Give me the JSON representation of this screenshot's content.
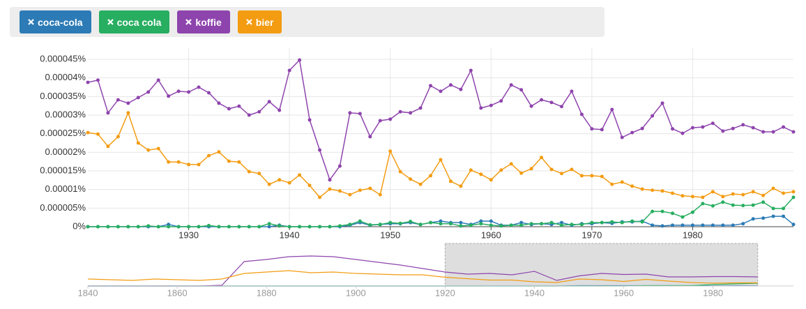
{
  "chart_data": [
    {
      "type": "line",
      "x": [
        1920,
        1921,
        1922,
        1923,
        1924,
        1925,
        1926,
        1927,
        1928,
        1929,
        1930,
        1931,
        1932,
        1933,
        1934,
        1935,
        1936,
        1937,
        1938,
        1939,
        1940,
        1941,
        1942,
        1943,
        1944,
        1945,
        1946,
        1947,
        1948,
        1949,
        1950,
        1951,
        1952,
        1953,
        1954,
        1955,
        1956,
        1957,
        1958,
        1959,
        1960,
        1961,
        1962,
        1963,
        1964,
        1965,
        1966,
        1967,
        1968,
        1969,
        1970,
        1971,
        1972,
        1973,
        1974,
        1975,
        1976,
        1977,
        1978,
        1979,
        1980,
        1981,
        1982,
        1983,
        1984,
        1985,
        1986,
        1987,
        1988,
        1989,
        1990
      ],
      "xlim": [
        1920,
        1990
      ],
      "xticks": [
        1930,
        1940,
        1950,
        1960,
        1970,
        1980
      ],
      "ylim": [
        0,
        4.8e-05
      ],
      "yticks": [
        {
          "value": 0,
          "label": "0%"
        },
        {
          "value": 5e-06,
          "label": "0.000005%"
        },
        {
          "value": 1e-05,
          "label": "0.00001%"
        },
        {
          "value": 1.5e-05,
          "label": "0.000015%"
        },
        {
          "value": 2e-05,
          "label": "0.00002%"
        },
        {
          "value": 2.5e-05,
          "label": "0.000025%"
        },
        {
          "value": 3e-05,
          "label": "0.00003%"
        },
        {
          "value": 3.5e-05,
          "label": "0.000035%"
        },
        {
          "value": 4e-05,
          "label": "0.00004%"
        },
        {
          "value": 4.5e-05,
          "label": "0.000045%"
        }
      ],
      "grid": true,
      "series": [
        {
          "name": "coca-cola",
          "color": "#2c7bb6",
          "values": [
            0,
            0,
            0,
            0,
            0,
            0,
            0,
            0,
            6e-07,
            0,
            0,
            0,
            0,
            0,
            0,
            0,
            0,
            0,
            0,
            4e-07,
            0,
            0,
            0,
            0,
            0,
            0,
            4e-07,
            1.1e-06,
            4e-07,
            6e-07,
            8e-07,
            8e-07,
            1.1e-06,
            6e-07,
            1.1e-06,
            1.5e-06,
            1.1e-06,
            1.1e-06,
            6e-07,
            1.5e-06,
            1.5e-06,
            4e-07,
            4e-07,
            1.1e-06,
            6e-07,
            8e-07,
            6e-07,
            1.1e-06,
            4e-07,
            8e-07,
            8e-07,
            1.1e-06,
            9e-07,
            1.3e-06,
            1.3e-06,
            1.5e-06,
            4e-07,
            2e-07,
            4e-07,
            4e-07,
            4e-07,
            4e-07,
            4e-07,
            4e-07,
            4e-07,
            8e-07,
            2.1e-06,
            2.3e-06,
            2.8e-06,
            2.8e-06,
            6e-07
          ]
        },
        {
          "name": "coca cola",
          "color": "#27ae60",
          "values": [
            0,
            0,
            0,
            0,
            0,
            0,
            2e-07,
            0,
            0,
            0,
            0,
            0,
            3e-07,
            0,
            0,
            0,
            0,
            0,
            8e-07,
            2e-07,
            0,
            0,
            0,
            0,
            0,
            2e-07,
            6e-07,
            1.5e-06,
            5e-07,
            6e-07,
            1.1e-06,
            9e-07,
            1.4e-06,
            6e-07,
            1.1e-06,
            8e-07,
            8e-07,
            2e-07,
            4e-07,
            8e-07,
            4e-07,
            2e-07,
            4e-07,
            4e-07,
            8e-07,
            8e-07,
            1.1e-06,
            4e-07,
            6e-07,
            6e-07,
            1.1e-06,
            1.1e-06,
            1.3e-06,
            1.1e-06,
            1.5e-06,
            1.3e-06,
            4.1e-06,
            4.1e-06,
            3.6e-06,
            2.6e-06,
            3.9e-06,
            6.2e-06,
            5.6e-06,
            6.6e-06,
            5.8e-06,
            5.7e-06,
            5.8e-06,
            6.6e-06,
            4.9e-06,
            4.9e-06,
            7.9e-06
          ]
        },
        {
          "name": "koffie",
          "color": "#8e44ad",
          "values": [
            3.88e-05,
            3.94e-05,
            3.06e-05,
            3.41e-05,
            3.32e-05,
            3.47e-05,
            3.62e-05,
            3.94e-05,
            3.51e-05,
            3.64e-05,
            3.62e-05,
            3.75e-05,
            3.6e-05,
            3.32e-05,
            3.17e-05,
            3.24e-05,
            3e-05,
            3.09e-05,
            3.36e-05,
            3.13e-05,
            4.2e-05,
            4.48e-05,
            2.87e-05,
            2.06e-05,
            1.26e-05,
            1.63e-05,
            3.06e-05,
            3.04e-05,
            2.42e-05,
            2.85e-05,
            2.89e-05,
            3.09e-05,
            3.06e-05,
            3.19e-05,
            3.79e-05,
            3.64e-05,
            3.81e-05,
            3.69e-05,
            4.2e-05,
            3.19e-05,
            3.26e-05,
            3.38e-05,
            3.81e-05,
            3.68e-05,
            3.24e-05,
            3.41e-05,
            3.34e-05,
            3.23e-05,
            3.64e-05,
            3.02e-05,
            2.63e-05,
            2.61e-05,
            3.15e-05,
            2.4e-05,
            2.53e-05,
            2.64e-05,
            2.98e-05,
            3.32e-05,
            2.63e-05,
            2.51e-05,
            2.66e-05,
            2.68e-05,
            2.78e-05,
            2.57e-05,
            2.64e-05,
            2.74e-05,
            2.66e-05,
            2.55e-05,
            2.55e-05,
            2.68e-05,
            2.55e-05
          ]
        },
        {
          "name": "bier",
          "color": "#f39c12",
          "values": [
            2.53e-05,
            2.49e-05,
            2.16e-05,
            2.42e-05,
            3.06e-05,
            2.25e-05,
            2.06e-05,
            2.1e-05,
            1.74e-05,
            1.74e-05,
            1.67e-05,
            1.67e-05,
            1.91e-05,
            2.01e-05,
            1.76e-05,
            1.74e-05,
            1.48e-05,
            1.43e-05,
            1.14e-05,
            1.26e-05,
            1.18e-05,
            1.39e-05,
            1.11e-05,
            7.9e-06,
            1.01e-05,
            9.6e-06,
            8.6e-06,
            9.8e-06,
            1.03e-05,
            8.6e-06,
            2.03e-05,
            1.48e-05,
            1.28e-05,
            1.14e-05,
            1.37e-05,
            1.8e-05,
            1.22e-05,
            1.09e-05,
            1.52e-05,
            1.41e-05,
            1.26e-05,
            1.52e-05,
            1.69e-05,
            1.44e-05,
            1.56e-05,
            1.86e-05,
            1.54e-05,
            1.43e-05,
            1.54e-05,
            1.37e-05,
            1.37e-05,
            1.35e-05,
            1.14e-05,
            1.2e-05,
            1.09e-05,
            1.01e-05,
            9.8e-06,
            9.6e-06,
            9e-06,
            8.3e-06,
            8.1e-06,
            7.9e-06,
            9.4e-06,
            8.1e-06,
            8.8e-06,
            8.6e-06,
            9.4e-06,
            8.4e-06,
            1.03e-05,
            9e-06,
            9.4e-06
          ]
        }
      ]
    },
    {
      "type": "line",
      "x": [
        1840,
        1845,
        1850,
        1855,
        1860,
        1865,
        1870,
        1875,
        1880,
        1885,
        1890,
        1895,
        1900,
        1905,
        1910,
        1915,
        1920,
        1925,
        1930,
        1935,
        1940,
        1945,
        1950,
        1955,
        1960,
        1965,
        1970,
        1975,
        1980,
        1985,
        1990
      ],
      "xlim": [
        1840,
        1998
      ],
      "xticks": [
        1840,
        1860,
        1880,
        1900,
        1920,
        1940,
        1960,
        1980
      ],
      "ylim": [
        0,
        0.0001
      ],
      "series": [
        {
          "values": [
            0,
            0,
            0,
            0,
            0,
            0,
            0,
            0,
            0,
            0,
            0,
            0,
            0,
            0,
            0,
            0,
            0,
            0,
            0,
            0,
            0,
            0,
            1e-06,
            1e-06,
            1e-06,
            1e-06,
            1e-06,
            1e-06,
            4e-07,
            8e-07,
            6e-07
          ]
        },
        {
          "values": [
            0,
            0,
            0,
            0,
            0,
            0,
            0,
            0,
            0,
            0,
            0,
            0,
            0,
            0,
            0,
            0,
            0,
            0,
            0,
            0,
            0,
            0,
            0,
            0,
            0,
            1e-06,
            1e-06,
            1e-06,
            4e-06,
            6e-06,
            8e-06
          ]
        },
        {
          "values": [
            0,
            0,
            0,
            0,
            0,
            0,
            2e-06,
            7e-05,
            7.6e-05,
            8.4e-05,
            8.6e-05,
            8.4e-05,
            7.6e-05,
            6.8e-05,
            6e-05,
            5e-05,
            4e-05,
            3.4e-05,
            3.6e-05,
            3.2e-05,
            4.2e-05,
            1.6e-05,
            2.9e-05,
            3.6e-05,
            3.3e-05,
            3.4e-05,
            2.6e-05,
            2.6e-05,
            2.7e-05,
            2.7e-05,
            2.6e-05
          ]
        },
        {
          "values": [
            2e-05,
            1.8e-05,
            1.6e-05,
            2e-05,
            1.8e-05,
            1.6e-05,
            2e-05,
            3.6e-05,
            4e-05,
            4.4e-05,
            3.8e-05,
            4e-05,
            3.6e-05,
            3.4e-05,
            3.2e-05,
            3.2e-05,
            2.5e-05,
            2.1e-05,
            1.7e-05,
            1.7e-05,
            1.2e-05,
            1e-05,
            2e-05,
            1.8e-05,
            1.3e-05,
            1.9e-05,
            1.4e-05,
            1e-05,
            8e-06,
            9e-06,
            9e-06
          ]
        }
      ]
    }
  ]
}
